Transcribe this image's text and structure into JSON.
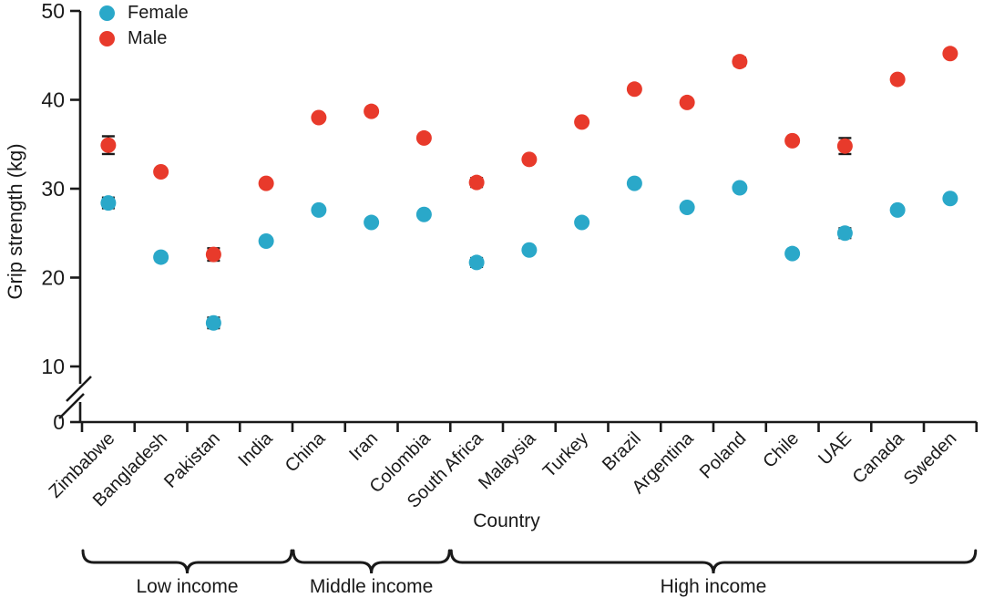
{
  "chart_data": {
    "type": "scatter",
    "title": "",
    "xlabel": "Country",
    "ylabel": "Grip strength (kg)",
    "legend_position": "top-left",
    "grid": false,
    "axis_break_between": [
      0,
      10
    ],
    "ylim": [
      0,
      50
    ],
    "yticks": [
      0,
      10,
      20,
      30,
      40,
      50
    ],
    "categories": [
      "Zimbabwe",
      "Bangladesh",
      "Pakistan",
      "India",
      "China",
      "Iran",
      "Colombia",
      "South Africa",
      "Malaysia",
      "Turkey",
      "Brazil",
      "Argentina",
      "Poland",
      "Chile",
      "UAE",
      "Canada",
      "Sweden"
    ],
    "series": [
      {
        "name": "Female",
        "color": "#2AA8C9",
        "values": [
          28.4,
          22.3,
          14.9,
          24.1,
          27.6,
          26.2,
          27.1,
          21.7,
          23.1,
          26.2,
          30.6,
          27.9,
          30.1,
          22.7,
          25.0,
          27.6,
          28.9
        ],
        "errors": [
          0.6,
          0.4,
          0.6,
          0.25,
          0.2,
          0.2,
          0.3,
          0.5,
          0.35,
          0.3,
          0.3,
          0.25,
          0.3,
          0.35,
          0.55,
          0.2,
          0.3
        ]
      },
      {
        "name": "Male",
        "color": "#E83A2B",
        "values": [
          34.9,
          31.9,
          22.6,
          30.6,
          38.0,
          38.7,
          35.7,
          30.7,
          33.3,
          37.5,
          41.2,
          39.7,
          44.3,
          35.4,
          34.8,
          42.3,
          45.2
        ],
        "errors": [
          1.0,
          0.35,
          0.7,
          0.2,
          0.2,
          0.2,
          0.35,
          0.5,
          0.25,
          0.3,
          0.3,
          0.25,
          0.45,
          0.3,
          0.9,
          0.2,
          0.35
        ]
      }
    ],
    "groups": [
      {
        "label": "Low income",
        "from": 0,
        "to": 3
      },
      {
        "label": "Middle income",
        "from": 4,
        "to": 6
      },
      {
        "label": "High income",
        "from": 7,
        "to": 16
      }
    ]
  },
  "style": {
    "axis_color": "#1a1a1a"
  }
}
